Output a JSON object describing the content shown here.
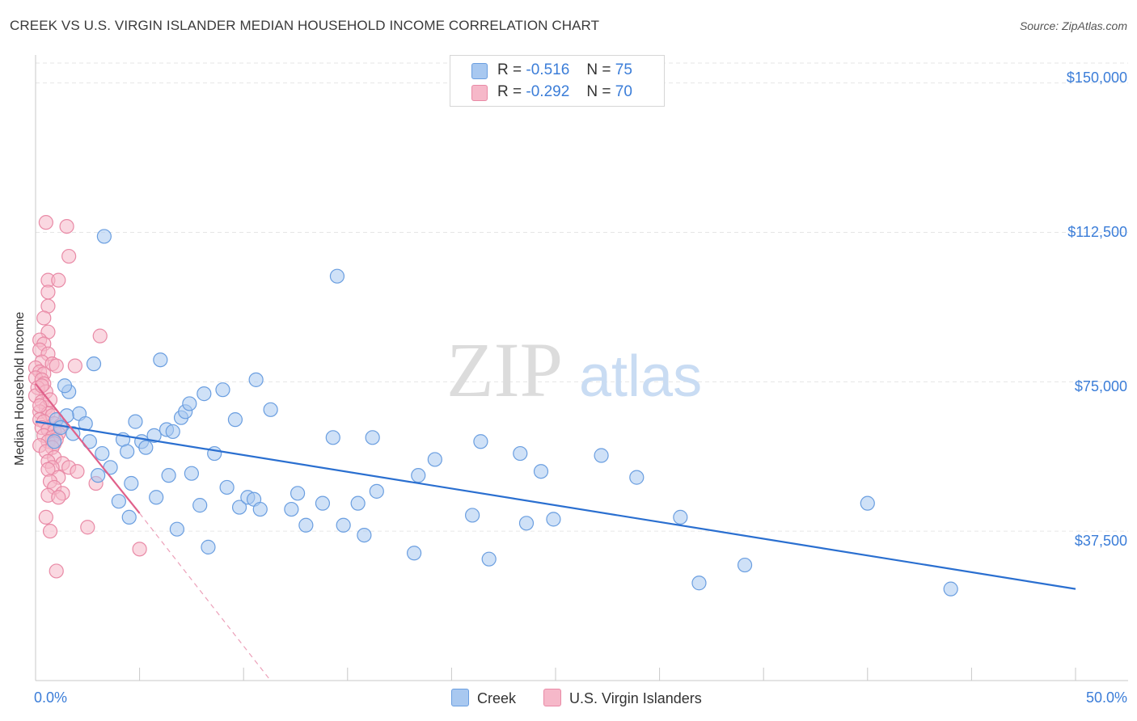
{
  "title": "CREEK VS U.S. VIRGIN ISLANDER MEDIAN HOUSEHOLD INCOME CORRELATION CHART",
  "source": "Source: ZipAtlas.com",
  "watermark": {
    "zip": "ZIP",
    "atlas": "atlas"
  },
  "legend_top": {
    "rows": [
      {
        "r_label": "R =",
        "r_value": "-0.516",
        "n_label": "N =",
        "n_value": "75",
        "color": "#a8c8f0"
      },
      {
        "r_label": "R =",
        "r_value": "-0.292",
        "n_label": "N =",
        "n_value": "70",
        "color": "#f6b8c9"
      }
    ]
  },
  "legend_bottom": {
    "creek": "Creek",
    "usvi": "U.S. Virgin Islanders"
  },
  "colors": {
    "creek_fill": "#a8c8f0",
    "creek_stroke": "#6a9ee0",
    "creek_line": "#2a6fd0",
    "usvi_fill": "#f6b8c9",
    "usvi_stroke": "#e98aa6",
    "usvi_line": "#e0608a",
    "tick_text": "#3b7dd8",
    "grid": "#e6e6e6"
  },
  "chart_data": {
    "type": "scatter",
    "title": "CREEK VS U.S. VIRGIN ISLANDER MEDIAN HOUSEHOLD INCOME CORRELATION CHART",
    "xlabel": "",
    "ylabel": "Median Household Income",
    "xlim": [
      0,
      50
    ],
    "ylim": [
      0,
      155000
    ],
    "x_tick_labels": [
      "0.0%",
      "50.0%"
    ],
    "y_ticks": [
      37500,
      75000,
      112500,
      150000
    ],
    "y_tick_labels": [
      "$37,500",
      "$75,000",
      "$112,500",
      "$150,000"
    ],
    "grid": true,
    "legend_position": "top-center",
    "series": [
      {
        "name": "Creek",
        "R": -0.516,
        "N": 75,
        "trend": {
          "x": [
            0,
            50
          ],
          "y": [
            65000,
            23000
          ]
        },
        "points": [
          [
            2.1,
            67000
          ],
          [
            1.5,
            66500
          ],
          [
            2.8,
            79500
          ],
          [
            1.6,
            72500
          ],
          [
            3.2,
            57000
          ],
          [
            2.6,
            60000
          ],
          [
            3.6,
            53500
          ],
          [
            4.2,
            60500
          ],
          [
            4.6,
            49500
          ],
          [
            4.4,
            57500
          ],
          [
            4.0,
            45000
          ],
          [
            4.5,
            41000
          ],
          [
            5.1,
            60000
          ],
          [
            4.8,
            65000
          ],
          [
            5.7,
            61500
          ],
          [
            5.8,
            46000
          ],
          [
            6.0,
            80500
          ],
          [
            6.4,
            51500
          ],
          [
            6.3,
            63000
          ],
          [
            6.6,
            62500
          ],
          [
            6.8,
            38000
          ],
          [
            7.0,
            66000
          ],
          [
            7.2,
            67500
          ],
          [
            7.4,
            69500
          ],
          [
            7.5,
            52000
          ],
          [
            7.9,
            44000
          ],
          [
            8.1,
            72000
          ],
          [
            8.3,
            33500
          ],
          [
            8.6,
            57000
          ],
          [
            9.0,
            73000
          ],
          [
            9.2,
            48500
          ],
          [
            9.6,
            65500
          ],
          [
            9.8,
            43500
          ],
          [
            10.2,
            46000
          ],
          [
            10.5,
            45500
          ],
          [
            10.8,
            43000
          ],
          [
            10.6,
            75500
          ],
          [
            11.3,
            68000
          ],
          [
            12.3,
            43000
          ],
          [
            12.6,
            47000
          ],
          [
            13.0,
            39000
          ],
          [
            13.8,
            44500
          ],
          [
            14.3,
            61000
          ],
          [
            14.5,
            101500
          ],
          [
            14.8,
            39000
          ],
          [
            15.5,
            44500
          ],
          [
            15.8,
            36500
          ],
          [
            16.2,
            61000
          ],
          [
            16.4,
            47500
          ],
          [
            18.2,
            32000
          ],
          [
            18.4,
            51500
          ],
          [
            19.2,
            55500
          ],
          [
            21.4,
            60000
          ],
          [
            21.0,
            41500
          ],
          [
            21.8,
            30500
          ],
          [
            23.3,
            57000
          ],
          [
            23.6,
            39500
          ],
          [
            24.3,
            52500
          ],
          [
            24.9,
            40500
          ],
          [
            27.2,
            56500
          ],
          [
            28.9,
            51000
          ],
          [
            31.0,
            41000
          ],
          [
            31.9,
            24500
          ],
          [
            34.1,
            29000
          ],
          [
            40.0,
            44500
          ],
          [
            44.0,
            23000
          ],
          [
            1.0,
            65500
          ],
          [
            1.2,
            63500
          ],
          [
            1.8,
            62000
          ],
          [
            2.4,
            64500
          ],
          [
            3.0,
            51500
          ],
          [
            0.9,
            60000
          ],
          [
            5.3,
            58500
          ],
          [
            3.3,
            111500
          ],
          [
            1.4,
            74000
          ]
        ]
      },
      {
        "name": "U.S. Virgin Islanders",
        "R": -0.292,
        "N": 70,
        "trend": {
          "x": [
            0,
            5
          ],
          "y": [
            74500,
            42000
          ]
        },
        "trend_extension": {
          "x": [
            5,
            11.3
          ],
          "y": [
            42000,
            0
          ]
        },
        "points": [
          [
            0.5,
            115000
          ],
          [
            1.5,
            114000
          ],
          [
            1.6,
            106500
          ],
          [
            0.6,
            100500
          ],
          [
            1.1,
            100500
          ],
          [
            0.6,
            97500
          ],
          [
            0.6,
            94000
          ],
          [
            0.4,
            91000
          ],
          [
            0.6,
            87500
          ],
          [
            3.1,
            86500
          ],
          [
            0.2,
            85500
          ],
          [
            0.4,
            84500
          ],
          [
            0.2,
            83000
          ],
          [
            0.6,
            82000
          ],
          [
            0.3,
            80000
          ],
          [
            0.8,
            79500
          ],
          [
            1.0,
            79000
          ],
          [
            1.9,
            79000
          ],
          [
            0.0,
            78500
          ],
          [
            0.2,
            77500
          ],
          [
            0.4,
            77000
          ],
          [
            0.0,
            76000
          ],
          [
            0.3,
            75500
          ],
          [
            0.4,
            74500
          ],
          [
            0.1,
            73500
          ],
          [
            0.5,
            72500
          ],
          [
            0.0,
            71500
          ],
          [
            0.3,
            70000
          ],
          [
            0.5,
            68500
          ],
          [
            0.2,
            67500
          ],
          [
            0.6,
            67000
          ],
          [
            0.8,
            66500
          ],
          [
            0.2,
            65500
          ],
          [
            0.4,
            65000
          ],
          [
            0.9,
            64500
          ],
          [
            1.2,
            64000
          ],
          [
            0.3,
            63500
          ],
          [
            0.6,
            63000
          ],
          [
            0.9,
            62500
          ],
          [
            1.1,
            62000
          ],
          [
            0.4,
            61500
          ],
          [
            0.8,
            61000
          ],
          [
            1.0,
            60500
          ],
          [
            0.6,
            60000
          ],
          [
            0.9,
            59500
          ],
          [
            0.2,
            59000
          ],
          [
            0.8,
            58500
          ],
          [
            0.5,
            57500
          ],
          [
            0.9,
            56000
          ],
          [
            0.6,
            55000
          ],
          [
            1.3,
            54500
          ],
          [
            0.8,
            53500
          ],
          [
            1.6,
            53500
          ],
          [
            0.6,
            53000
          ],
          [
            2.0,
            52500
          ],
          [
            1.1,
            51000
          ],
          [
            0.7,
            50000
          ],
          [
            2.9,
            49500
          ],
          [
            0.9,
            48500
          ],
          [
            1.3,
            47000
          ],
          [
            0.6,
            46500
          ],
          [
            1.1,
            46000
          ],
          [
            0.5,
            41000
          ],
          [
            2.5,
            38500
          ],
          [
            0.7,
            37500
          ],
          [
            5.0,
            33000
          ],
          [
            1.0,
            27500
          ],
          [
            0.3,
            74000
          ],
          [
            0.7,
            70500
          ],
          [
            0.2,
            69000
          ]
        ]
      }
    ]
  }
}
